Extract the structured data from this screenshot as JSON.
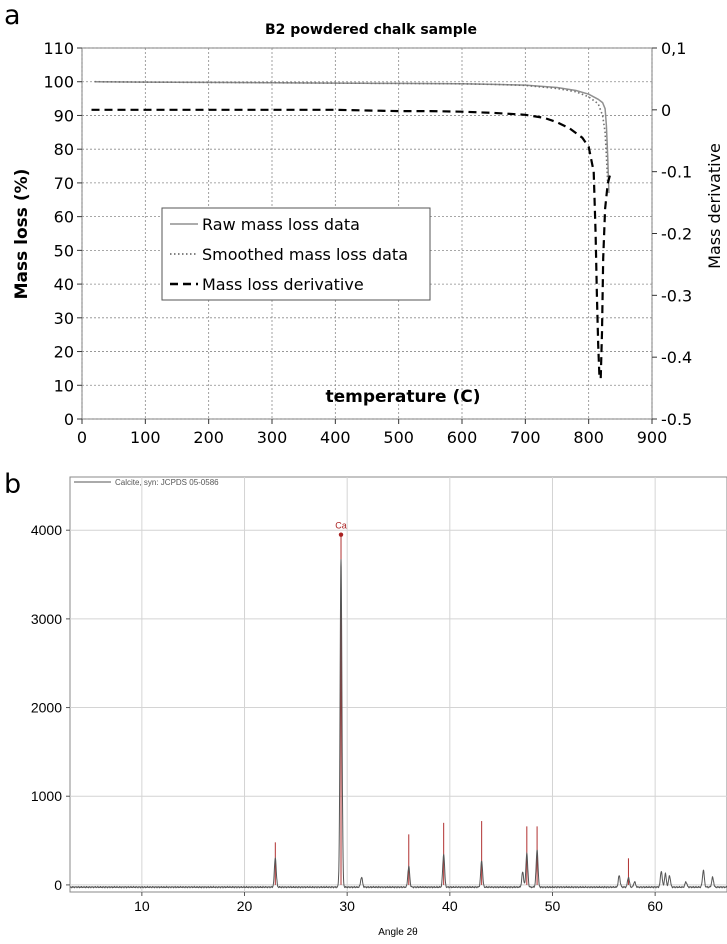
{
  "chart_data": [
    {
      "panel_label": "a",
      "type": "line",
      "title": "B2 powdered chalk sample",
      "xlabel": "temperature (C)",
      "ylabel": "Mass loss (%)",
      "y2label": "Mass derivative",
      "xlim": [
        0,
        900
      ],
      "ylim": [
        0,
        110
      ],
      "y2lim": [
        -0.5,
        0.1
      ],
      "xticks": [
        "0",
        "100",
        "200",
        "300",
        "400",
        "500",
        "600",
        "700",
        "800",
        "900"
      ],
      "yticks": [
        "0",
        "10",
        "20",
        "30",
        "40",
        "50",
        "60",
        "70",
        "80",
        "90",
        "100",
        "110"
      ],
      "y2ticks": [
        "-0.5",
        "-0.4",
        "-0.3",
        "-0.2",
        "-0.1",
        "0",
        "0,1"
      ],
      "grid": true,
      "legend": {
        "placement": "center-left",
        "entries": [
          "Raw mass loss data",
          "Smoothed mass loss data",
          "Mass loss derivative"
        ]
      },
      "series": [
        {
          "name": "Raw mass loss data",
          "axis": "left",
          "style": "solid",
          "color": "#909090",
          "x": [
            20,
            100,
            200,
            300,
            400,
            500,
            600,
            650,
            700,
            750,
            780,
            800,
            815,
            822,
            826,
            828,
            830,
            832
          ],
          "y": [
            100,
            99.9,
            99.8,
            99.7,
            99.6,
            99.5,
            99.4,
            99.2,
            99.0,
            98.3,
            97.4,
            96.3,
            94.8,
            93.8,
            92.0,
            87.0,
            78.0,
            67.0
          ]
        },
        {
          "name": "Smoothed mass loss data",
          "axis": "left",
          "style": "dotted",
          "color": "#707070",
          "x": [
            20,
            100,
            200,
            300,
            400,
            500,
            600,
            650,
            700,
            750,
            780,
            800,
            815,
            822,
            826,
            828,
            830
          ],
          "y": [
            100,
            99.9,
            99.8,
            99.7,
            99.6,
            99.5,
            99.4,
            99.2,
            98.9,
            98.0,
            97.0,
            95.5,
            93.5,
            90.0,
            85.0,
            78.0,
            70.0
          ]
        },
        {
          "name": "Mass loss derivative",
          "axis": "right",
          "style": "dashed",
          "color": "#000000",
          "x": [
            15,
            100,
            200,
            300,
            400,
            450,
            500,
            550,
            600,
            650,
            700,
            730,
            750,
            770,
            790,
            800,
            808,
            811,
            813,
            815,
            817,
            819,
            821,
            823,
            826,
            830,
            835
          ],
          "y": [
            0,
            0,
            0,
            0,
            0,
            -0.001,
            -0.002,
            -0.002,
            -0.003,
            -0.005,
            -0.008,
            -0.013,
            -0.02,
            -0.03,
            -0.045,
            -0.06,
            -0.1,
            -0.2,
            -0.3,
            -0.38,
            -0.43,
            -0.435,
            -0.36,
            -0.24,
            -0.16,
            -0.12,
            -0.1
          ]
        }
      ]
    },
    {
      "panel_label": "b",
      "type": "line",
      "title": "",
      "xlabel": "Angle 2θ",
      "ylabel": "",
      "xlim": [
        3,
        67
      ],
      "ylim": [
        -80,
        4600
      ],
      "xticks": [
        "10",
        "20",
        "30",
        "40",
        "50",
        "60"
      ],
      "yticks": [
        "0",
        "1000",
        "2000",
        "3000",
        "4000"
      ],
      "grid": true,
      "legend": {
        "placement": "top-left",
        "entries": [
          "Calcite, syn: JCPDS 05-0586"
        ]
      },
      "annotations": [
        {
          "text": "Ca",
          "x": 29.4,
          "y": 3950,
          "color": "#aa2222"
        }
      ],
      "baseline": -25,
      "peaks": [
        {
          "x": 23.0,
          "h": 330
        },
        {
          "x": 29.4,
          "h": 3700
        },
        {
          "x": 31.4,
          "h": 110
        },
        {
          "x": 36.0,
          "h": 230
        },
        {
          "x": 39.4,
          "h": 370
        },
        {
          "x": 43.1,
          "h": 290
        },
        {
          "x": 47.1,
          "h": 170
        },
        {
          "x": 47.5,
          "h": 380
        },
        {
          "x": 48.5,
          "h": 420
        },
        {
          "x": 56.5,
          "h": 130
        },
        {
          "x": 57.4,
          "h": 110
        },
        {
          "x": 58.0,
          "h": 60
        },
        {
          "x": 60.6,
          "h": 180
        },
        {
          "x": 61.0,
          "h": 150
        },
        {
          "x": 61.4,
          "h": 130
        },
        {
          "x": 63.0,
          "h": 60
        },
        {
          "x": 64.7,
          "h": 190
        },
        {
          "x": 65.6,
          "h": 110
        }
      ],
      "reference_lines": [
        {
          "x": 23.0,
          "y": 480
        },
        {
          "x": 29.4,
          "y": 3950
        },
        {
          "x": 36.0,
          "y": 570
        },
        {
          "x": 39.4,
          "y": 700
        },
        {
          "x": 43.1,
          "y": 720
        },
        {
          "x": 47.5,
          "y": 660
        },
        {
          "x": 48.5,
          "y": 660
        },
        {
          "x": 57.4,
          "y": 300
        }
      ],
      "colors": {
        "measured": "#555555",
        "reference": "#b03030"
      }
    }
  ]
}
